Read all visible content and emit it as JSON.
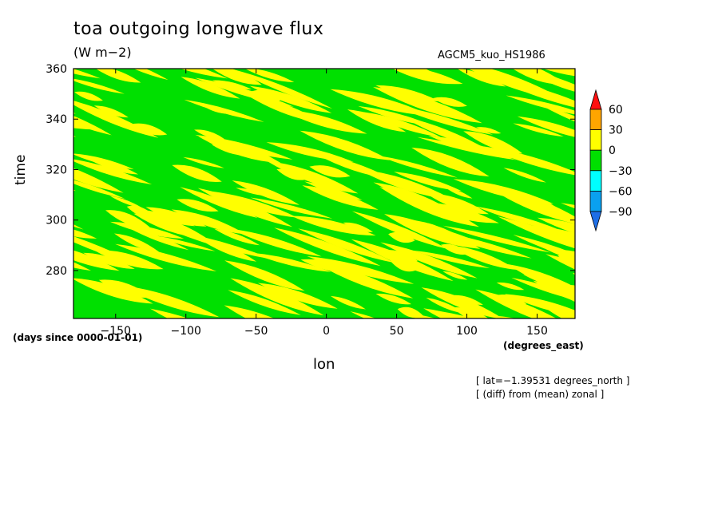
{
  "chart_data": {
    "type": "heatmap",
    "title": "toa outgoing longwave flux",
    "units": "(W m−2)",
    "source_label": "AGCM5_kuo_HS1986",
    "xlabel": "lon",
    "x_unit_label": "(degrees_east)",
    "ylabel": "time",
    "y_unit_label": "(days since 0000-01-01)",
    "x_ticks": [
      -150,
      -100,
      -50,
      0,
      50,
      100,
      150
    ],
    "y_ticks": [
      280,
      300,
      320,
      340,
      360
    ],
    "xlim": [
      -180,
      177
    ],
    "ylim": [
      261,
      360
    ],
    "colorbar": {
      "levels": [
        -90,
        -60,
        -30,
        0,
        30,
        60
      ],
      "colors": [
        "#1e6ee6",
        "#0aa0f0",
        "#00ffff",
        "#00e000",
        "#ffff00",
        "#ffa500",
        "#ff1010"
      ],
      "tick_labels": [
        "60",
        "30",
        "0",
        "−30",
        "−60",
        "−90"
      ]
    },
    "field_description": "anomaly field dominated by values between -30 and 30, banded diagonally (westward propagation)",
    "notes": [
      "[ lat=−1.39531 degrees_north ]",
      "[ (diff) from (mean) zonal ]"
    ]
  }
}
